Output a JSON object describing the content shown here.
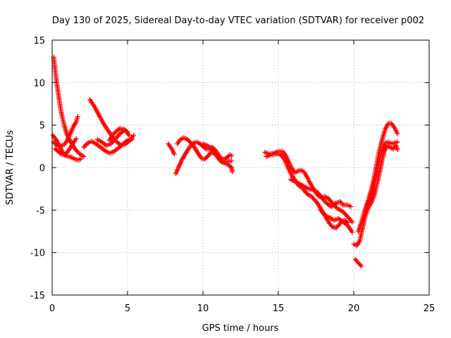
{
  "chart_data": {
    "type": "scatter",
    "title": "Day 130 of 2025, Sidereal Day-to-day VTEC variation (SDTVAR) for receiver p002",
    "xlabel": "GPS time / hours",
    "ylabel": "SDTVAR / TECUs",
    "xlim": [
      0,
      25
    ],
    "ylim": [
      -15,
      15
    ],
    "x_ticks": [
      0,
      5,
      10,
      15,
      20,
      25
    ],
    "y_ticks": [
      -15,
      -10,
      -5,
      0,
      5,
      10,
      15
    ],
    "x_tick_labels": [
      "0",
      "5",
      "10",
      "15",
      "20",
      "25"
    ],
    "y_tick_labels": [
      "-15",
      "-10",
      "-5",
      "0",
      "5",
      "10",
      "15"
    ],
    "grid": true,
    "marker": "+",
    "series": [
      {
        "name": "SDTVAR",
        "color": "#ff0000",
        "traces": [
          [
            [
              0.1,
              13.0
            ],
            [
              0.2,
              11.5
            ],
            [
              0.3,
              10.0
            ],
            [
              0.45,
              8.2
            ],
            [
              0.6,
              6.5
            ],
            [
              0.8,
              5.0
            ],
            [
              1.0,
              3.8
            ],
            [
              1.3,
              2.8
            ],
            [
              1.6,
              2.0
            ],
            [
              1.9,
              1.5
            ],
            [
              2.1,
              1.3
            ]
          ],
          [
            [
              0.05,
              3.8
            ],
            [
              0.3,
              3.2
            ],
            [
              0.5,
              2.5
            ],
            [
              0.7,
              1.8
            ],
            [
              0.9,
              1.4
            ],
            [
              1.1,
              1.3
            ],
            [
              1.3,
              1.2
            ],
            [
              1.5,
              1.0
            ],
            [
              1.7,
              0.9
            ],
            [
              1.9,
              1.0
            ]
          ],
          [
            [
              0.1,
              3.0
            ],
            [
              0.3,
              2.6
            ],
            [
              0.5,
              2.5
            ],
            [
              0.8,
              2.7
            ],
            [
              1.0,
              3.2
            ],
            [
              1.2,
              4.0
            ],
            [
              1.4,
              4.8
            ],
            [
              1.6,
              5.4
            ],
            [
              1.7,
              6.0
            ]
          ],
          [
            [
              0.2,
              2.2
            ],
            [
              0.4,
              1.9
            ],
            [
              0.6,
              1.6
            ],
            [
              0.8,
              1.5
            ],
            [
              1.0,
              1.8
            ],
            [
              1.2,
              2.3
            ],
            [
              1.4,
              2.9
            ],
            [
              1.6,
              3.4
            ]
          ],
          [
            [
              2.1,
              2.4
            ],
            [
              2.3,
              2.8
            ],
            [
              2.6,
              3.1
            ],
            [
              2.9,
              2.8
            ],
            [
              3.2,
              2.4
            ],
            [
              3.5,
              2.0
            ],
            [
              3.8,
              1.7
            ],
            [
              4.1,
              1.9
            ],
            [
              4.4,
              2.3
            ],
            [
              4.7,
              2.8
            ],
            [
              5.0,
              3.2
            ],
            [
              5.3,
              3.3
            ]
          ],
          [
            [
              2.5,
              8.0
            ],
            [
              2.8,
              7.2
            ],
            [
              3.1,
              6.2
            ],
            [
              3.4,
              5.2
            ],
            [
              3.7,
              4.4
            ],
            [
              4.0,
              3.6
            ],
            [
              4.3,
              3.0
            ],
            [
              4.6,
              2.6
            ],
            [
              4.9,
              2.8
            ],
            [
              5.2,
              3.3
            ],
            [
              5.4,
              3.8
            ]
          ],
          [
            [
              3.0,
              3.3
            ],
            [
              3.3,
              3.0
            ],
            [
              3.6,
              2.6
            ],
            [
              3.9,
              2.8
            ],
            [
              4.2,
              3.4
            ],
            [
              4.5,
              4.0
            ],
            [
              4.8,
              4.4
            ],
            [
              5.0,
              4.2
            ]
          ],
          [
            [
              3.8,
              3.2
            ],
            [
              4.0,
              3.8
            ],
            [
              4.2,
              4.2
            ],
            [
              4.5,
              4.6
            ],
            [
              4.8,
              4.5
            ],
            [
              5.1,
              3.8
            ]
          ],
          [
            [
              7.7,
              2.8
            ],
            [
              7.9,
              2.3
            ],
            [
              8.1,
              1.6
            ]
          ],
          [
            [
              8.2,
              -0.7
            ],
            [
              8.4,
              0.1
            ],
            [
              8.6,
              0.9
            ],
            [
              8.8,
              1.5
            ],
            [
              9.0,
              2.1
            ],
            [
              9.2,
              2.6
            ],
            [
              9.4,
              2.9
            ],
            [
              9.6,
              3.0
            ],
            [
              9.8,
              2.8
            ],
            [
              10.0,
              2.5
            ],
            [
              10.2,
              2.2
            ],
            [
              10.4,
              2.2
            ],
            [
              10.6,
              2.4
            ],
            [
              10.8,
              2.1
            ],
            [
              11.0,
              1.6
            ],
            [
              11.2,
              1.1
            ],
            [
              11.4,
              1.0
            ],
            [
              11.6,
              1.2
            ],
            [
              11.8,
              1.5
            ],
            [
              11.9,
              1.4
            ]
          ],
          [
            [
              8.3,
              2.8
            ],
            [
              8.5,
              3.3
            ],
            [
              8.7,
              3.5
            ],
            [
              8.9,
              3.4
            ],
            [
              9.1,
              3.1
            ],
            [
              9.3,
              2.7
            ],
            [
              9.5,
              2.2
            ],
            [
              9.7,
              1.6
            ],
            [
              9.9,
              1.1
            ],
            [
              10.1,
              1.0
            ],
            [
              10.3,
              1.3
            ],
            [
              10.5,
              1.7
            ],
            [
              10.7,
              1.8
            ],
            [
              10.9,
              1.4
            ],
            [
              11.1,
              0.9
            ],
            [
              11.3,
              0.6
            ],
            [
              11.5,
              0.5
            ],
            [
              11.7,
              0.3
            ],
            [
              11.9,
              0.0
            ],
            [
              11.95,
              -0.5
            ]
          ],
          [
            [
              10.0,
              2.8
            ],
            [
              10.4,
              2.5
            ],
            [
              10.8,
              1.6
            ],
            [
              11.2,
              0.8
            ],
            [
              11.6,
              0.7
            ],
            [
              11.9,
              0.8
            ]
          ],
          [
            [
              14.1,
              1.8
            ],
            [
              14.4,
              1.6
            ],
            [
              14.7,
              1.7
            ],
            [
              15.0,
              1.9
            ],
            [
              15.3,
              1.9
            ],
            [
              15.5,
              1.4
            ],
            [
              15.7,
              0.6
            ],
            [
              15.9,
              -0.1
            ],
            [
              16.1,
              -0.6
            ],
            [
              16.3,
              -0.4
            ],
            [
              16.5,
              -0.3
            ],
            [
              16.7,
              -0.5
            ],
            [
              16.9,
              -1.1
            ],
            [
              17.1,
              -1.8
            ],
            [
              17.3,
              -2.4
            ],
            [
              17.5,
              -3.0
            ],
            [
              17.7,
              -3.4
            ],
            [
              17.9,
              -3.5
            ],
            [
              18.1,
              -3.4
            ],
            [
              18.3,
              -3.6
            ],
            [
              18.5,
              -4.0
            ],
            [
              18.7,
              -4.4
            ],
            [
              18.9,
              -4.8
            ],
            [
              19.1,
              -5.0
            ],
            [
              19.3,
              -5.2
            ],
            [
              19.5,
              -5.6
            ],
            [
              19.7,
              -6.0
            ],
            [
              19.9,
              -6.4
            ]
          ],
          [
            [
              14.2,
              1.3
            ],
            [
              14.5,
              1.5
            ],
            [
              14.8,
              1.6
            ],
            [
              15.1,
              1.6
            ],
            [
              15.4,
              1.0
            ],
            [
              15.6,
              0.2
            ],
            [
              15.8,
              -0.6
            ],
            [
              16.0,
              -1.2
            ],
            [
              16.2,
              -1.8
            ],
            [
              16.4,
              -2.2
            ],
            [
              16.6,
              -2.4
            ],
            [
              16.8,
              -2.9
            ],
            [
              17.0,
              -3.2
            ],
            [
              17.2,
              -3.4
            ],
            [
              17.4,
              -3.8
            ],
            [
              17.6,
              -4.2
            ],
            [
              17.8,
              -4.8
            ],
            [
              18.0,
              -5.4
            ],
            [
              18.2,
              -6.0
            ],
            [
              18.4,
              -6.6
            ],
            [
              18.6,
              -7.0
            ],
            [
              18.8,
              -7.1
            ],
            [
              19.0,
              -6.8
            ],
            [
              19.2,
              -6.3
            ],
            [
              19.4,
              -6.2
            ],
            [
              19.6,
              -6.5
            ]
          ],
          [
            [
              15.8,
              -1.4
            ],
            [
              16.1,
              -1.6
            ],
            [
              16.4,
              -1.9
            ],
            [
              16.7,
              -2.2
            ],
            [
              17.0,
              -2.5
            ],
            [
              17.3,
              -2.6
            ],
            [
              17.6,
              -2.9
            ],
            [
              17.9,
              -3.6
            ],
            [
              18.2,
              -4.2
            ],
            [
              18.5,
              -4.6
            ],
            [
              18.8,
              -4.2
            ],
            [
              19.1,
              -4.0
            ],
            [
              19.3,
              -4.4
            ],
            [
              19.6,
              -4.4
            ],
            [
              19.8,
              -4.6
            ]
          ],
          [
            [
              17.8,
              -5.0
            ],
            [
              18.1,
              -5.6
            ],
            [
              18.4,
              -5.9
            ],
            [
              18.7,
              -6.2
            ],
            [
              19.0,
              -6.0
            ],
            [
              19.3,
              -6.4
            ],
            [
              19.6,
              -6.8
            ],
            [
              19.9,
              -7.6
            ]
          ],
          [
            [
              20.0,
              -9.0
            ],
            [
              20.2,
              -9.2
            ],
            [
              20.4,
              -8.6
            ],
            [
              20.6,
              -7.0
            ],
            [
              20.8,
              -5.5
            ],
            [
              21.0,
              -4.6
            ],
            [
              21.2,
              -4.0
            ],
            [
              21.4,
              -3.0
            ],
            [
              21.6,
              -1.5
            ],
            [
              21.8,
              0.2
            ],
            [
              22.0,
              1.8
            ],
            [
              22.2,
              2.6
            ],
            [
              22.4,
              2.4
            ],
            [
              22.6,
              2.2
            ],
            [
              22.8,
              2.6
            ],
            [
              22.9,
              2.1
            ]
          ],
          [
            [
              20.3,
              -7.5
            ],
            [
              20.5,
              -6.5
            ],
            [
              20.7,
              -5.2
            ],
            [
              20.9,
              -4.2
            ],
            [
              21.1,
              -3.0
            ],
            [
              21.3,
              -1.6
            ],
            [
              21.5,
              0.2
            ],
            [
              21.7,
              2.0
            ],
            [
              21.9,
              3.4
            ],
            [
              22.1,
              4.6
            ],
            [
              22.3,
              5.2
            ],
            [
              22.5,
              5.2
            ],
            [
              22.7,
              4.7
            ],
            [
              22.9,
              4.0
            ]
          ],
          [
            [
              20.9,
              -4.4
            ],
            [
              21.1,
              -3.6
            ],
            [
              21.3,
              -2.2
            ],
            [
              21.5,
              -0.8
            ],
            [
              21.7,
              0.9
            ],
            [
              21.9,
              2.2
            ],
            [
              22.1,
              2.9
            ],
            [
              22.3,
              3.0
            ],
            [
              22.5,
              2.8
            ],
            [
              22.7,
              2.9
            ],
            [
              22.9,
              3.0
            ]
          ],
          [
            [
              20.1,
              -10.8
            ],
            [
              20.3,
              -11.2
            ],
            [
              20.5,
              -11.6
            ]
          ]
        ]
      }
    ]
  }
}
